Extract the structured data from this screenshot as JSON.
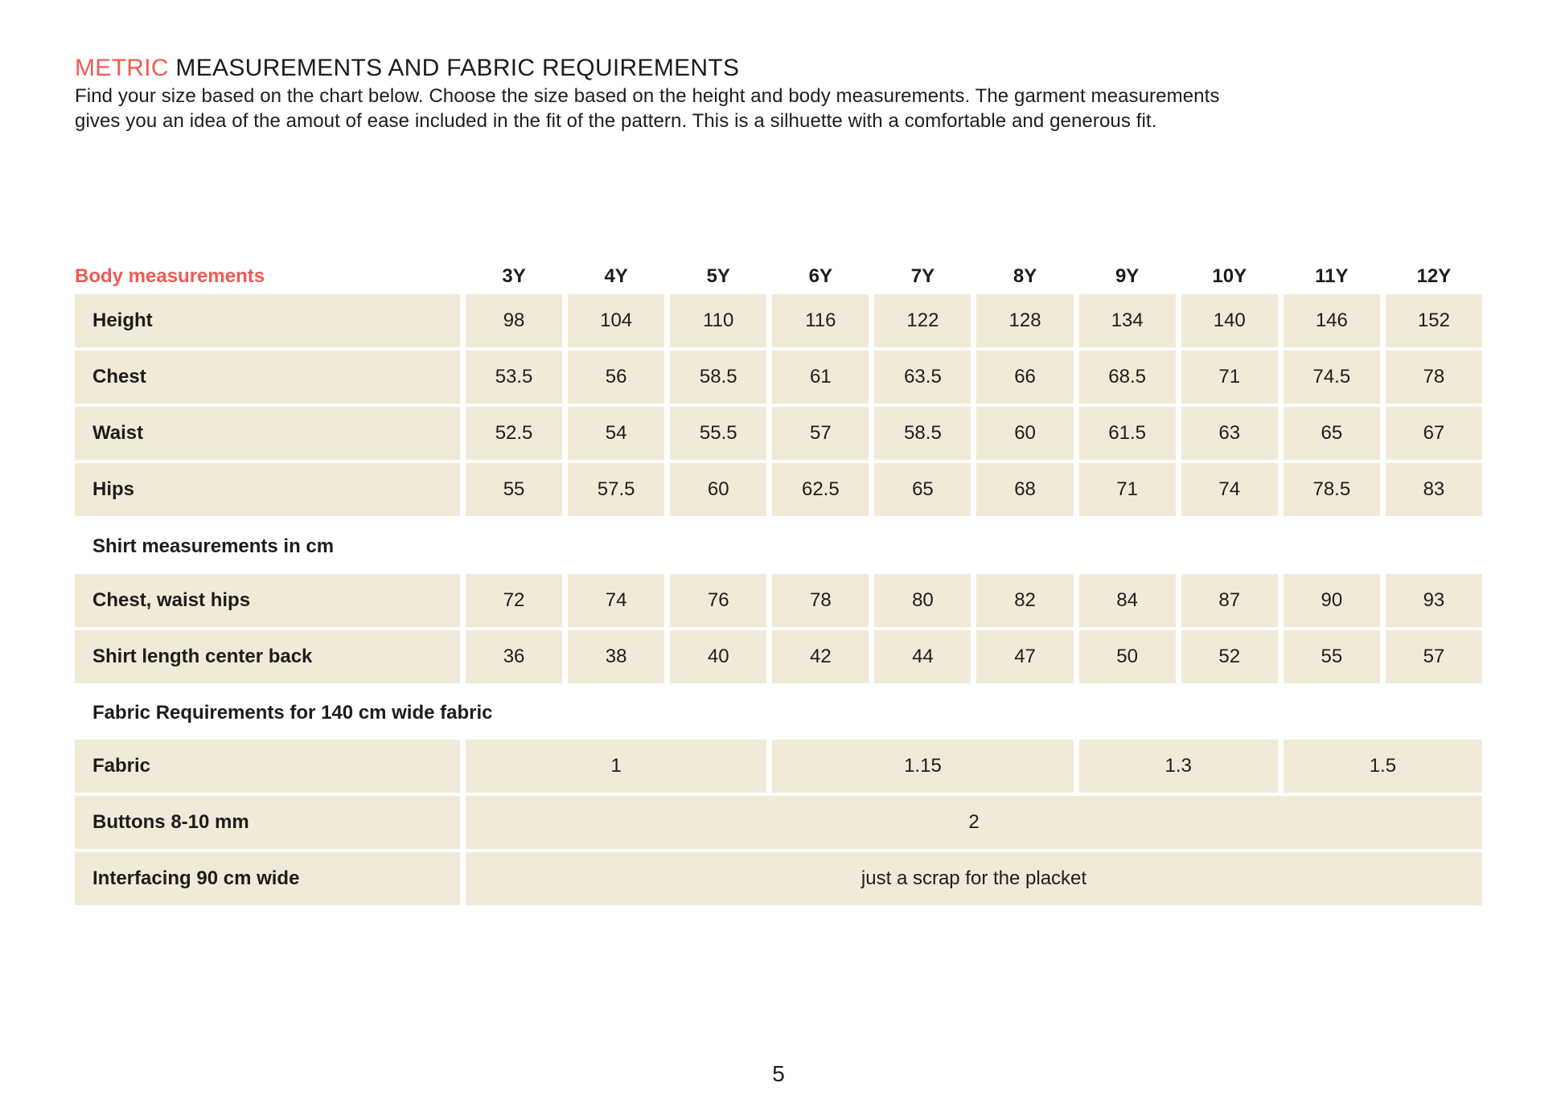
{
  "page": {
    "title_highlight": "METRIC",
    "title_rest": " MEASUREMENTS AND FABRIC REQUIREMENTS",
    "intro_lines": [
      "Find your size based on the chart below. Choose the size based on the height and body measurements. The garment measurements",
      "gives you an idea of the amout of ease included in the fit of the pattern. This is a silhuette with a comfortable and generous fit."
    ],
    "page_number": "5"
  },
  "colors": {
    "accent": "#ef5b51",
    "cell_background": "#f2ead9",
    "text": "#1d1d1b"
  },
  "table": {
    "header": {
      "label": "Body measurements",
      "sizes": [
        "3Y",
        "4Y",
        "5Y",
        "6Y",
        "7Y",
        "8Y",
        "9Y",
        "10Y",
        "11Y",
        "12Y"
      ]
    },
    "body_rows": [
      {
        "label": "Height",
        "values": [
          "98",
          "104",
          "110",
          "116",
          "122",
          "128",
          "134",
          "140",
          "146",
          "152"
        ]
      },
      {
        "label": "Chest",
        "values": [
          "53.5",
          "56",
          "58.5",
          "61",
          "63.5",
          "66",
          "68.5",
          "71",
          "74.5",
          "78"
        ]
      },
      {
        "label": "Waist",
        "values": [
          "52.5",
          "54",
          "55.5",
          "57",
          "58.5",
          "60",
          "61.5",
          "63",
          "65",
          "67"
        ]
      },
      {
        "label": "Hips",
        "values": [
          "55",
          "57.5",
          "60",
          "62.5",
          "65",
          "68",
          "71",
          "74",
          "78.5",
          "83"
        ]
      }
    ],
    "shirt_section_title": "Shirt measurements in cm",
    "shirt_rows": [
      {
        "label": "Chest, waist hips",
        "values": [
          "72",
          "74",
          "76",
          "78",
          "80",
          "82",
          "84",
          "87",
          "90",
          "93"
        ]
      },
      {
        "label": "Shirt length center back",
        "values": [
          "36",
          "38",
          "40",
          "42",
          "44",
          "47",
          "50",
          "52",
          "55",
          "57"
        ]
      }
    ],
    "fabric_section_title": "Fabric Requirements for 140 cm wide fabric",
    "fabric_row": {
      "label": "Fabric",
      "cells": [
        {
          "span": 3,
          "value": "1"
        },
        {
          "span": 3,
          "value": "1.15"
        },
        {
          "span": 2,
          "value": "1.3"
        },
        {
          "span": 2,
          "value": "1.5"
        }
      ]
    },
    "buttons_row": {
      "label": "Buttons 8-10 mm",
      "value": "2"
    },
    "interfacing_row": {
      "label": "Interfacing 90 cm wide",
      "value": "just a scrap for the placket"
    }
  }
}
